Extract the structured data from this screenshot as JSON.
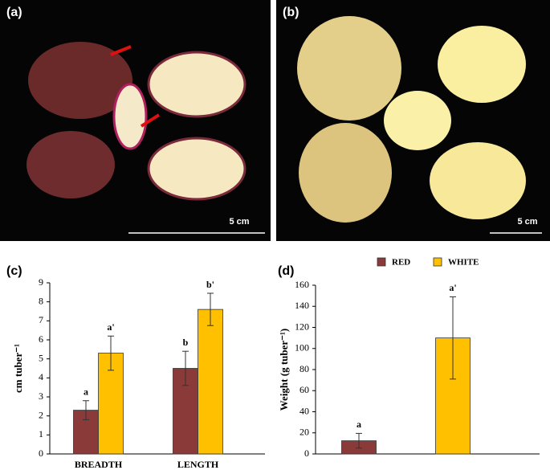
{
  "photos": [
    {
      "label": "(a)",
      "scale": "5 cm"
    },
    {
      "label": "(b)",
      "scale": "5 cm"
    }
  ],
  "chart_data": [
    {
      "type": "bar",
      "label": "(c)",
      "y_label": "cm tuber⁻¹",
      "categories": [
        "BREADTH",
        "LENGTH"
      ],
      "series": [
        {
          "name": "RED",
          "color": "#8b3a3a",
          "values": [
            2.3,
            4.5
          ],
          "errors": [
            0.5,
            0.9
          ],
          "annotations": [
            "a",
            "b"
          ]
        },
        {
          "name": "WHITE",
          "color": "#ffc000",
          "values": [
            5.3,
            7.6
          ],
          "errors": [
            0.9,
            0.85
          ],
          "annotations": [
            "a'",
            "b'"
          ]
        }
      ],
      "ylim": [
        0,
        9
      ],
      "yticks": [
        0,
        1,
        2,
        3,
        4,
        5,
        6,
        7,
        8,
        9
      ],
      "legend": false
    },
    {
      "type": "bar",
      "label": "(d)",
      "y_label": "Weight (g tuber⁻¹)",
      "categories": [
        null
      ],
      "series": [
        {
          "name": "RED",
          "color": "#8b3a3a",
          "values": [
            12.5
          ],
          "errors": [
            7
          ],
          "annotations": [
            "a"
          ]
        },
        {
          "name": "WHITE",
          "color": "#ffc000",
          "values": [
            110
          ],
          "errors": [
            39
          ],
          "annotations": [
            "a'"
          ]
        }
      ],
      "ylim": [
        0,
        160
      ],
      "yticks": [
        0,
        20,
        40,
        60,
        80,
        100,
        120,
        140,
        160
      ],
      "legend": true
    }
  ]
}
